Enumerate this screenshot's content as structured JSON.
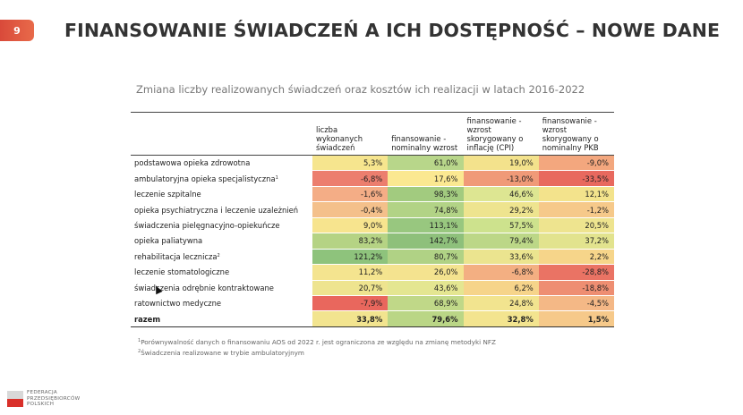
{
  "slide_number": "9",
  "title": "FINANSOWANIE ŚWIADCZEŃ A ICH DOSTĘPNOŚĆ – NOWE DANE",
  "subtitle": "Zmiana liczby realizowanych świadczeń oraz kosztów ich realizacji w latach 2016-2022",
  "table": {
    "headers": [
      "",
      "liczba wykonanych świadczeń",
      "finansowanie - nominalny wzrost",
      "finansowanie - wzrost skorygowany o inflację (CPI)",
      "finansowanie - wzrost skorygowany o nominalny PKB"
    ],
    "rows": [
      {
        "label": "podstawowa opieka zdrowotna",
        "sup": "",
        "values": [
          "5,3%",
          "61,0%",
          "19,0%",
          "-9,0%"
        ],
        "colors": [
          "#f6e58e",
          "#b8d68a",
          "#f3e28c",
          "#f3a77e"
        ]
      },
      {
        "label": "ambulatoryjna opieka specjalistyczna",
        "sup": "1",
        "values": [
          "-6,8%",
          "17,6%",
          "-13,0%",
          "-33,5%"
        ],
        "colors": [
          "#ec7e6e",
          "#fbe891",
          "#f09a78",
          "#e8695e"
        ]
      },
      {
        "label": "leczenie szpitalne",
        "sup": "",
        "values": [
          "-1,6%",
          "98,3%",
          "46,6%",
          "12,1%"
        ],
        "colors": [
          "#f4ad86",
          "#a2cb7f",
          "#dde692",
          "#f3e38c"
        ]
      },
      {
        "label": "opieka psychiatryczna i leczenie uzależnień",
        "sup": "",
        "values": [
          "-0,4%",
          "74,8%",
          "29,2%",
          "-1,2%"
        ],
        "colors": [
          "#f4c08b",
          "#b2d386",
          "#eee48f",
          "#f6c98a"
        ]
      },
      {
        "label": "świadczenia pielęgnacyjno-opiekuńcze",
        "sup": "",
        "values": [
          "9,0%",
          "113,1%",
          "57,5%",
          "20,5%"
        ],
        "colors": [
          "#f7e48e",
          "#98c77f",
          "#cde28d",
          "#eee48f"
        ]
      },
      {
        "label": "opieka paliatywna",
        "sup": "",
        "values": [
          "83,2%",
          "142,7%",
          "79,4%",
          "37,2%"
        ],
        "colors": [
          "#b5d384",
          "#8ec07b",
          "#bcd787",
          "#e2e38e"
        ]
      },
      {
        "label": "rehabilitacja lecznicza",
        "sup": "2",
        "values": [
          "121,2%",
          "80,7%",
          "33,6%",
          "2,2%"
        ],
        "colors": [
          "#8ec37c",
          "#b0d285",
          "#ebe48f",
          "#f6d58a"
        ]
      },
      {
        "label": "leczenie stomatologiczne",
        "sup": "",
        "values": [
          "11,2%",
          "26,0%",
          "-6,8%",
          "-28,8%"
        ],
        "colors": [
          "#f4e48f",
          "#f4e38f",
          "#f3af82",
          "#ea7364"
        ]
      },
      {
        "label": "świadczenia odrębnie kontraktowane",
        "sup": "",
        "values": [
          "20,7%",
          "43,6%",
          "6,2%",
          "-18,8%"
        ],
        "colors": [
          "#eee48f",
          "#e4e691",
          "#f6d48a",
          "#ee8e72"
        ]
      },
      {
        "label": "ratownictwo medyczne",
        "sup": "",
        "values": [
          "-7,9%",
          "68,9%",
          "24,8%",
          "-4,5%"
        ],
        "colors": [
          "#e9675d",
          "#c0d888",
          "#f2e48f",
          "#f4b886"
        ]
      }
    ],
    "total": {
      "label": "razem",
      "values": [
        "33,8%",
        "79,6%",
        "32,8%",
        "1,5%"
      ],
      "colors": [
        "#f2e48f",
        "#bad686",
        "#f3e48f",
        "#f6c98a"
      ]
    }
  },
  "footnotes": [
    {
      "num": "1",
      "text": "Porównywalność danych o finansowaniu AOS od 2022 r. jest ograniczona ze względu na zmianę metodyki NFZ"
    },
    {
      "num": "2",
      "text": "Świadczenia realizowane w trybie ambulatoryjnym"
    }
  ],
  "logo": {
    "line1": "FEDERACJA",
    "line2": "PRZEDSIĘBIORCÓW",
    "line3": "POLSKICH"
  }
}
